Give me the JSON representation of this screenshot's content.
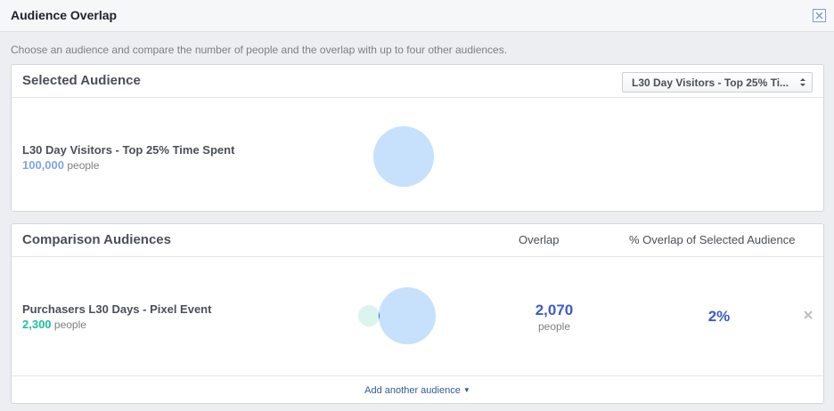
{
  "dialog": {
    "title": "Audience Overlap",
    "description": "Choose an audience and compare the number of people and the overlap with up to four other audiences."
  },
  "selected": {
    "title": "Selected Audience",
    "dropdown_value": "L30 Day Visitors - Top 25% Ti...",
    "audience": {
      "name": "L30 Day Visitors - Top 25% Time Spent",
      "count": "100,000",
      "unit": "people"
    }
  },
  "comparison": {
    "title": "Comparison Audiences",
    "overlap_header": "Overlap",
    "pct_header": "% Overlap of Selected Audience",
    "rows": [
      {
        "name": "Purchasers L30 Days - Pixel Event",
        "count": "2,300",
        "unit": "people",
        "overlap": "2,070",
        "overlap_unit": "people",
        "pct": "2%"
      }
    ],
    "add_label": "Add another audience"
  },
  "colors": {
    "selected_circle": "#c7e0fc",
    "comparison_circle": "#d9f5ee",
    "intersection": "#3b5cc6",
    "selected_count": "#7fa6e8",
    "comparison_count": "#1fbfa0"
  },
  "icons": {
    "close": "close-icon",
    "dropdown": "chevron-updown-icon",
    "remove": "remove-x-icon",
    "add_caret": "caret-down-icon"
  }
}
